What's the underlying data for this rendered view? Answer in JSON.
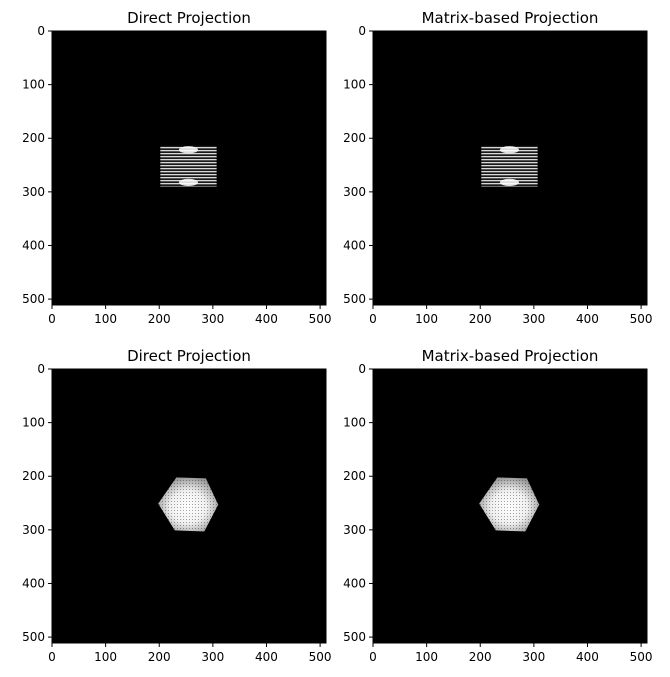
{
  "figure": {
    "layout": "2x2 grid of image panels",
    "colormap": "grayscale",
    "background_color": "#000000",
    "foreground_color": "#ffffff"
  },
  "chart_data": [
    {
      "type": "heatmap",
      "title": "Direct Projection",
      "xlim": [
        0,
        511
      ],
      "ylim": [
        511,
        0
      ],
      "xticks": [
        "0",
        "100",
        "200",
        "300",
        "400",
        "500"
      ],
      "yticks": [
        "0",
        "100",
        "200",
        "300",
        "400",
        "500"
      ],
      "xlabel": "",
      "ylabel": "",
      "object": {
        "shape": "rectangle",
        "description": "striped rectangular projection with bright blobs at top and bottom edges",
        "x_range": [
          202,
          307
        ],
        "y_range": [
          214,
          290
        ]
      }
    },
    {
      "type": "heatmap",
      "title": "Matrix-based Projection",
      "xlim": [
        0,
        511
      ],
      "ylim": [
        511,
        0
      ],
      "xticks": [
        "0",
        "100",
        "200",
        "300",
        "400",
        "500"
      ],
      "yticks": [
        "0",
        "100",
        "200",
        "300",
        "400",
        "500"
      ],
      "xlabel": "",
      "ylabel": "",
      "object": {
        "shape": "rectangle",
        "description": "striped rectangular projection with bright blobs at top and bottom edges",
        "x_range": [
          202,
          307
        ],
        "y_range": [
          214,
          290
        ]
      }
    },
    {
      "type": "heatmap",
      "title": "Direct Projection",
      "xlim": [
        0,
        511
      ],
      "ylim": [
        511,
        0
      ],
      "xticks": [
        "0",
        "100",
        "200",
        "300",
        "400",
        "500"
      ],
      "yticks": [
        "0",
        "100",
        "200",
        "300",
        "400",
        "500"
      ],
      "xlabel": "",
      "ylabel": "",
      "object": {
        "shape": "hexagon",
        "description": "rotated cube projection with bright center",
        "vertices": [
          [
            232,
            202
          ],
          [
            287,
            204
          ],
          [
            310,
            253
          ],
          [
            284,
            303
          ],
          [
            229,
            301
          ],
          [
            198,
            251
          ]
        ]
      }
    },
    {
      "type": "heatmap",
      "title": "Matrix-based Projection",
      "xlim": [
        0,
        511
      ],
      "ylim": [
        511,
        0
      ],
      "xticks": [
        "0",
        "100",
        "200",
        "300",
        "400",
        "500"
      ],
      "yticks": [
        "0",
        "100",
        "200",
        "300",
        "400",
        "500"
      ],
      "xlabel": "",
      "ylabel": "",
      "object": {
        "shape": "hexagon",
        "description": "rotated cube projection with bright center",
        "vertices": [
          [
            232,
            202
          ],
          [
            287,
            204
          ],
          [
            310,
            253
          ],
          [
            284,
            303
          ],
          [
            229,
            301
          ],
          [
            198,
            251
          ]
        ]
      }
    }
  ]
}
